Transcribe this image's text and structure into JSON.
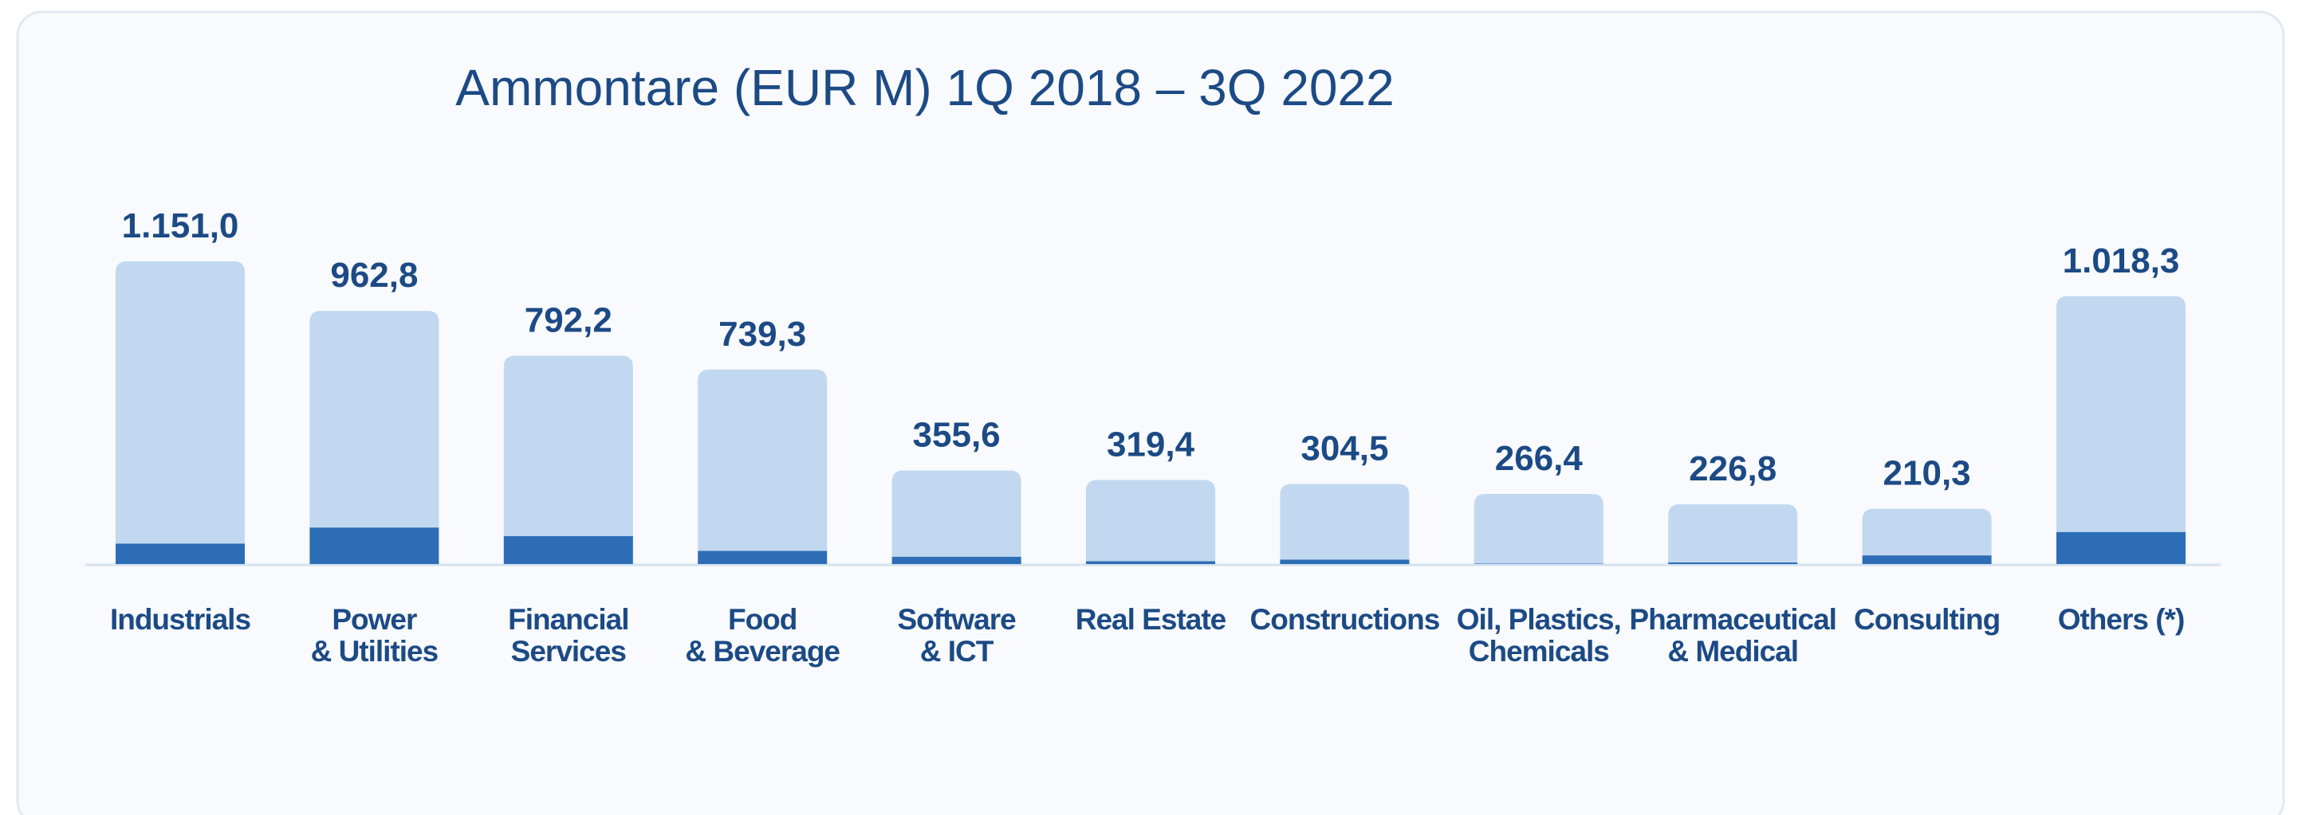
{
  "chart_data": {
    "type": "stacked_bar",
    "title": "Ammontare (EUR M) 1Q 2018 – 3Q 2022",
    "categories": [
      "Industrials",
      "Power\n& Utilities",
      "Financial\nServices",
      "Food\n& Beverage",
      "Software\n& ICT",
      "Real Estate",
      "Constructions",
      "Oil, Plastics,\nChemicals",
      "Pharmaceutical\n& Medical",
      "Consulting",
      "Others (*)"
    ],
    "series": [
      {
        "color": "#2c6db5",
        "values": [
          78,
          139,
          106,
          50,
          28,
          11,
          17,
          2,
          6,
          33,
          122
        ]
      },
      {
        "color": "#c1d8f0",
        "values": [
          1073,
          823.8,
          686.2,
          689.3,
          327.6,
          308.4,
          287.5,
          264.4,
          220.8,
          177.3,
          896.3
        ]
      }
    ],
    "totals": [
      1151.0,
      962.8,
      792.2,
      739.3,
      355.6,
      319.4,
      304.5,
      266.4,
      226.8,
      210.3,
      1018.3
    ],
    "value_labels": [
      "1.151,0",
      "962,8",
      "792,2",
      "739,3",
      "355,6",
      "319,4",
      "304,5",
      "266,4",
      "226,8",
      "210,3",
      "1.018,3"
    ]
  }
}
